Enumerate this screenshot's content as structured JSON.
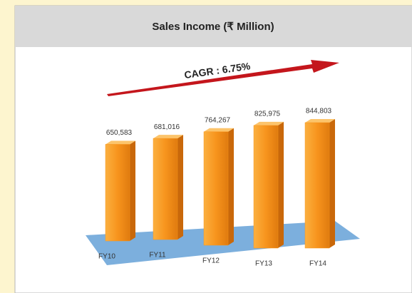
{
  "chart_data": {
    "type": "bar",
    "title": "Sales Income (₹ Million)",
    "annotation": "CAGR : 6.75%",
    "categories": [
      "FY10",
      "FY11",
      "FY12",
      "FY13",
      "FY14"
    ],
    "values": [
      650583,
      681016,
      764267,
      825975,
      844803
    ],
    "value_labels": [
      "650,583",
      "681,016",
      "764,267",
      "825,975",
      "844,803"
    ],
    "color": "#f7941d"
  }
}
